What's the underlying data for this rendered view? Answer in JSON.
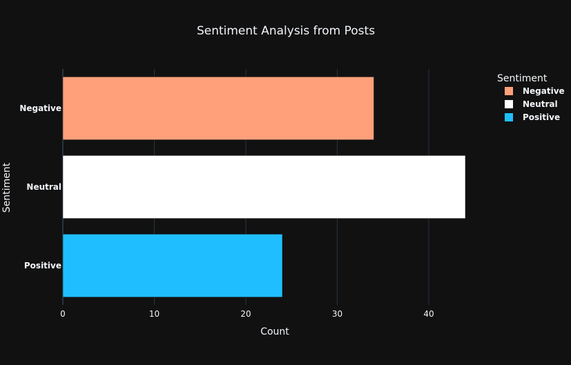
{
  "chart_data": {
    "type": "bar",
    "orientation": "horizontal",
    "title": "Sentiment Analysis from Posts",
    "xlabel": "Count",
    "ylabel": "Sentiment",
    "categories": [
      "Negative",
      "Neutral",
      "Positive"
    ],
    "values": [
      34,
      44,
      24
    ],
    "colors": [
      "#FFA07A",
      "#FFFFFF",
      "#1FBFFF"
    ],
    "xlim": [
      0,
      44
    ],
    "xticks": [
      0,
      10,
      20,
      30,
      40
    ],
    "grid": true,
    "legend": {
      "title": "Sentiment",
      "placement": "top-right",
      "entries": [
        "Negative",
        "Neutral",
        "Positive"
      ]
    },
    "theme": {
      "background": "#111111",
      "grid_color": "#283442",
      "text_color": "#F2F5FA"
    }
  }
}
